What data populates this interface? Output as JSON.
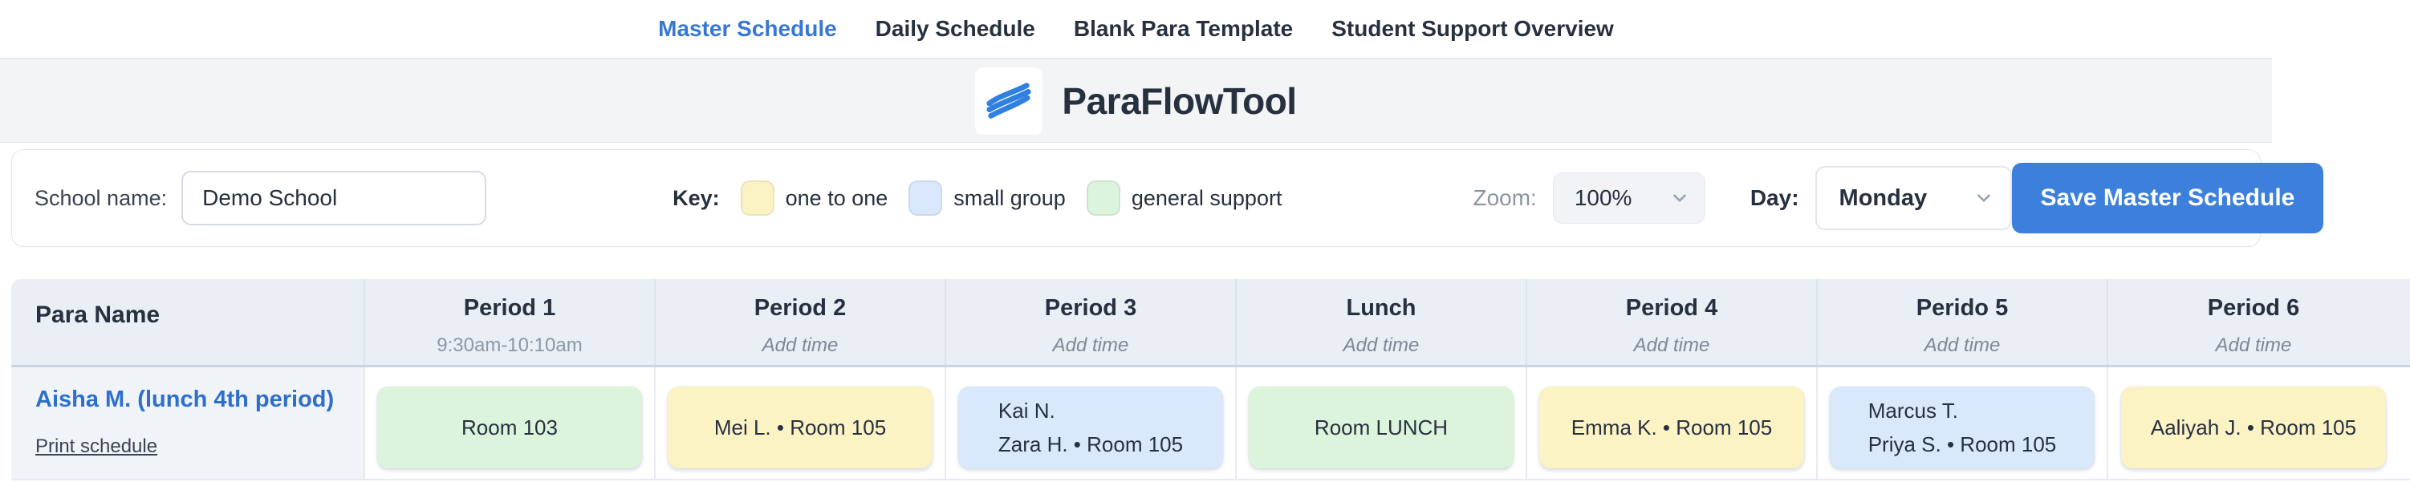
{
  "tabs": [
    {
      "label": "Master Schedule",
      "active": true
    },
    {
      "label": "Daily Schedule",
      "active": false
    },
    {
      "label": "Blank Para Template",
      "active": false
    },
    {
      "label": "Student Support Overview",
      "active": false
    }
  ],
  "app": {
    "title": "ParaFlowTool"
  },
  "toolbar": {
    "school_label": "School name:",
    "school_value": "Demo School",
    "key": {
      "label": "Key:",
      "items": [
        {
          "label": "one to one",
          "type": "one_to_one"
        },
        {
          "label": "small group",
          "type": "small_group"
        },
        {
          "label": "general support",
          "type": "general_support"
        }
      ]
    },
    "zoom": {
      "label": "Zoom:",
      "value": "100%"
    },
    "day": {
      "label": "Day:",
      "value": "Monday"
    },
    "save_label": "Save Master Schedule"
  },
  "table": {
    "para_header": "Para Name",
    "columns": [
      {
        "title": "Period 1",
        "subtitle": "9:30am-10:10am",
        "subtitle_kind": "time"
      },
      {
        "title": "Period 2",
        "subtitle": "Add time",
        "subtitle_kind": "placeholder"
      },
      {
        "title": "Period 3",
        "subtitle": "Add time",
        "subtitle_kind": "placeholder"
      },
      {
        "title": "Lunch",
        "subtitle": "Add time",
        "subtitle_kind": "placeholder"
      },
      {
        "title": "Period 4",
        "subtitle": "Add time",
        "subtitle_kind": "placeholder"
      },
      {
        "title": "Perido 5",
        "subtitle": "Add time",
        "subtitle_kind": "placeholder"
      },
      {
        "title": "Period 6",
        "subtitle": "Add time",
        "subtitle_kind": "placeholder"
      }
    ],
    "rows": [
      {
        "name": "Aisha M. (lunch 4th period)",
        "link": "Print schedule",
        "cells": [
          {
            "lines": [
              "Room 103"
            ],
            "type": "general_support"
          },
          {
            "lines": [
              "Mei L. • Room 105"
            ],
            "type": "one_to_one"
          },
          {
            "lines": [
              "Kai N.",
              "Zara H. • Room 105"
            ],
            "type": "small_group"
          },
          {
            "lines": [
              "Room LUNCH"
            ],
            "type": "general_support"
          },
          {
            "lines": [
              "Emma K. • Room 105"
            ],
            "type": "one_to_one"
          },
          {
            "lines": [
              "Marcus T.",
              "Priya S. • Room 105"
            ],
            "type": "small_group"
          },
          {
            "lines": [
              "Aaliyah J. • Room 105"
            ],
            "type": "one_to_one"
          }
        ]
      }
    ]
  },
  "colors": {
    "one_to_one": "#fcf3c4",
    "small_group": "#d9e8fb",
    "general_support": "#dcf3dc",
    "accent_blue": "#3878d2",
    "button_blue": "#3c80dc",
    "name_link_blue": "#2e6fcc"
  }
}
